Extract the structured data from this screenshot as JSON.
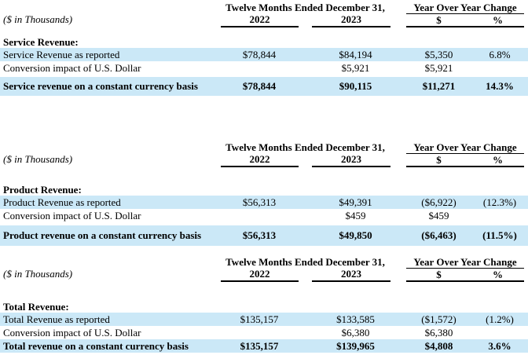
{
  "colors": {
    "highlight_row": "#CBE8F7",
    "text": "#000000",
    "rule": "#000000"
  },
  "tables": [
    {
      "id": "service-revenue",
      "units_label": "($ in Thousands)",
      "period_header": "Twelve Months Ended December 31,",
      "year_left": "2022",
      "year_right": "2023",
      "yoy_header": "Year Over Year Change",
      "yoy_dollar": "$",
      "yoy_percent": "%",
      "section_title": "Service Revenue:",
      "rows": [
        {
          "label": "Service Revenue as reported",
          "y2022": "$78,844",
          "y2023": "$84,194",
          "change_dollar": "$5,350",
          "change_percent": "6.8%"
        },
        {
          "label": "Conversion impact of U.S. Dollar",
          "y2022": "",
          "y2023": "$5,921",
          "change_dollar": "$5,921",
          "change_percent": ""
        },
        {
          "label": "Service revenue on a constant currency basis",
          "y2022": "$78,844",
          "y2023": "$90,115",
          "change_dollar": "$11,271",
          "change_percent": "14.3%"
        }
      ]
    },
    {
      "id": "product-revenue",
      "units_label": "($ in Thousands)",
      "period_header": "Twelve Months Ended December 31,",
      "year_left": "2022",
      "year_right": "2023",
      "yoy_header": "Year Over Year Change",
      "yoy_dollar": "$",
      "yoy_percent": "%",
      "section_title": "Product Revenue:",
      "rows": [
        {
          "label": "Product Revenue as reported",
          "y2022": "$56,313",
          "y2023": "$49,391",
          "change_dollar": "($6,922)",
          "change_percent": "(12.3%)"
        },
        {
          "label": "Conversion impact of U.S. Dollar",
          "y2022": "",
          "y2023": "$459",
          "change_dollar": "$459",
          "change_percent": ""
        },
        {
          "label": "Product revenue on a constant currency basis",
          "y2022": "$56,313",
          "y2023": "$49,850",
          "change_dollar": "($6,463)",
          "change_percent": "(11.5%)"
        }
      ]
    },
    {
      "id": "total-revenue",
      "units_label": "($ in Thousands)",
      "period_header": "Twelve Months Ended December 31,",
      "year_left": "2022",
      "year_right": "2023",
      "yoy_header": "Year Over Year Change",
      "yoy_dollar": "$",
      "yoy_percent": "%",
      "section_title": "Total Revenue:",
      "rows": [
        {
          "label": "Total Revenue as reported",
          "y2022": "$135,157",
          "y2023": "$133,585",
          "change_dollar": "($1,572)",
          "change_percent": "(1.2%)"
        },
        {
          "label": "Conversion impact of U.S. Dollar",
          "y2022": "",
          "y2023": "$6,380",
          "change_dollar": "$6,380",
          "change_percent": ""
        },
        {
          "label": "Total revenue on a constant currency basis",
          "y2022": "$135,157",
          "y2023": "$139,965",
          "change_dollar": "$4,808",
          "change_percent": "3.6%"
        }
      ]
    }
  ]
}
